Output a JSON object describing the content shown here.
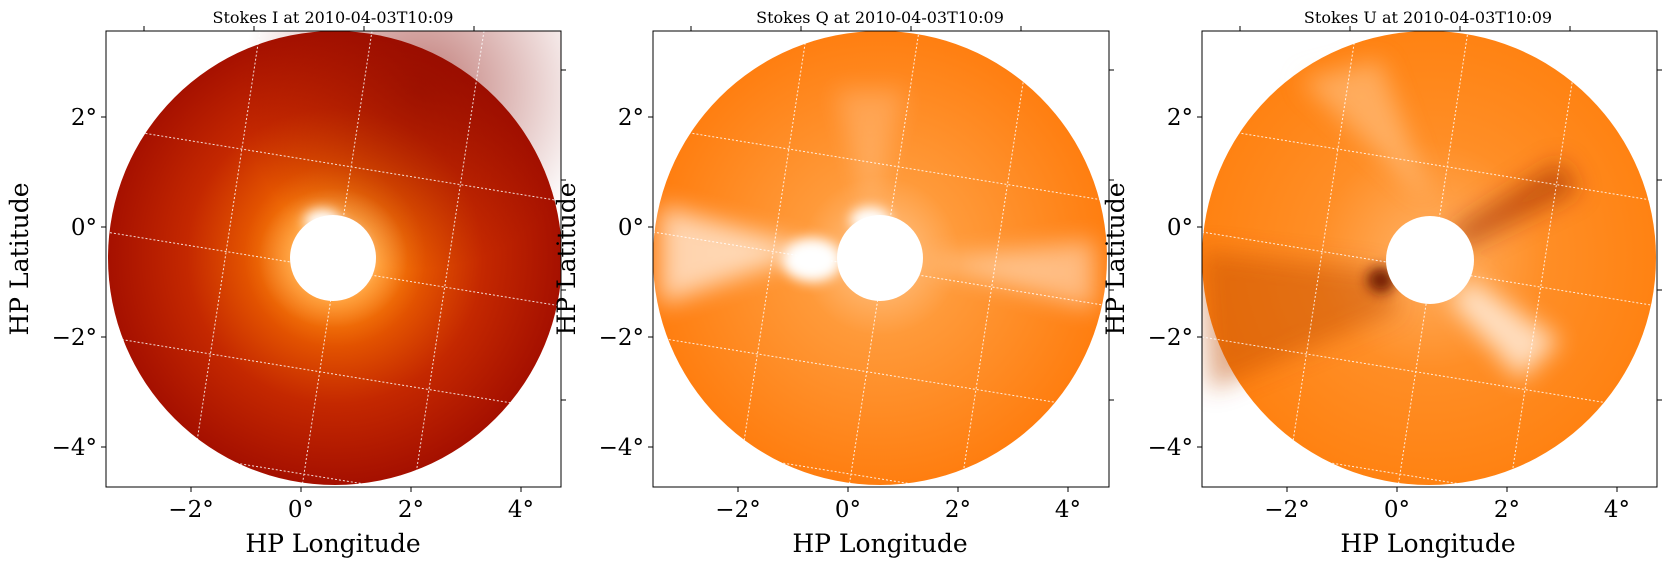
{
  "figure": {
    "background": "#ffffff",
    "grid_color": "#ffffff",
    "colormap": [
      "#8b0a00",
      "#b01200",
      "#d54a00",
      "#ff7a00",
      "#ffa64d",
      "#ffd6a8",
      "#ffffff"
    ]
  },
  "chart_data": [
    {
      "type": "heatmap",
      "title": "Stokes I at 2010-04-03T10:09",
      "xlabel": "HP Longitude",
      "ylabel": "HP Latitude",
      "xlim": [
        -3.5,
        4.75
      ],
      "ylim": [
        -4.7,
        3.55
      ],
      "xticks": [
        -2,
        0,
        2,
        4
      ],
      "xtick_labels": [
        "−2°",
        "0°",
        "2°",
        "4°"
      ],
      "yticks": [
        -4,
        -2,
        0,
        2
      ],
      "ytick_labels": [
        "−4°",
        "−2°",
        "0°",
        "2°"
      ],
      "grid": true,
      "disk_center_deg": [
        0.6,
        -0.58
      ],
      "occulter_radius_deg": 0.78,
      "field_radius_deg": 4.1,
      "colormap": "soholasco2"
    },
    {
      "type": "heatmap",
      "title": "Stokes Q at 2010-04-03T10:09",
      "xlabel": "HP Longitude",
      "ylabel": "HP Latitude",
      "xlim": [
        -3.5,
        4.75
      ],
      "ylim": [
        -4.7,
        3.55
      ],
      "xticks": [
        -2,
        0,
        2,
        4
      ],
      "xtick_labels": [
        "−2°",
        "0°",
        "2°",
        "4°"
      ],
      "yticks": [
        -4,
        -2,
        0,
        2
      ],
      "ytick_labels": [
        "−4°",
        "−2°",
        "0°",
        "2°"
      ],
      "grid": true,
      "disk_center_deg": [
        0.6,
        -0.58
      ],
      "occulter_radius_deg": 0.78,
      "field_radius_deg": 4.1,
      "colormap": "soholasco2"
    },
    {
      "type": "heatmap",
      "title": "Stokes U at 2010-04-03T10:09",
      "xlabel": "HP Longitude",
      "ylabel": "HP Latitude",
      "xlim": [
        -3.5,
        4.75
      ],
      "ylim": [
        -4.7,
        3.55
      ],
      "xticks": [
        -2,
        0,
        2,
        4
      ],
      "xtick_labels": [
        "−2°",
        "0°",
        "2°",
        "4°"
      ],
      "yticks": [
        -4,
        -2,
        0,
        2
      ],
      "ytick_labels": [
        "−4°",
        "−2°",
        "0°",
        "2°"
      ],
      "grid": true,
      "disk_center_deg": [
        0.6,
        -0.58
      ],
      "occulter_radius_deg": 0.78,
      "field_radius_deg": 4.1,
      "colormap": "soholasco2"
    }
  ]
}
